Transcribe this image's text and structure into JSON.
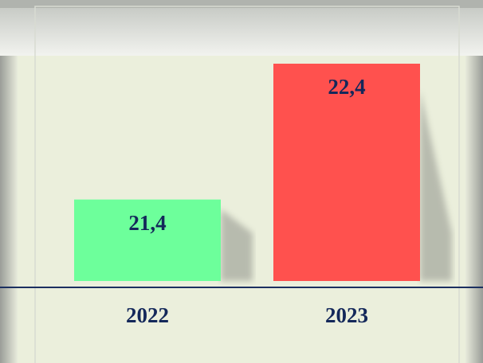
{
  "chart_data": {
    "type": "bar",
    "categories": [
      "2022",
      "2023"
    ],
    "values": [
      21.4,
      22.4
    ],
    "value_labels": [
      "21,4",
      "22,4"
    ],
    "colors": [
      "#6dff9b",
      "#ff514e"
    ],
    "ylim": [
      20.8,
      22.4
    ]
  }
}
